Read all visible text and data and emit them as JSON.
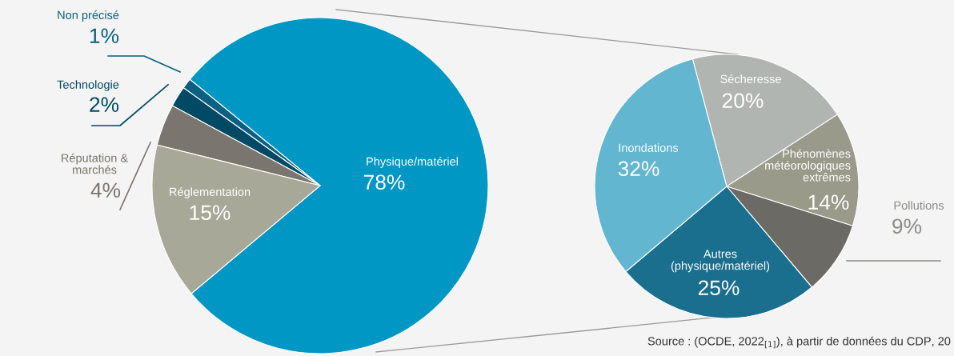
{
  "chart_data": [
    {
      "type": "pie",
      "categories": [
        "Physique/matériel",
        "Non précisé",
        "Technologie",
        "Réputation &\nmarchés",
        "Réglementation"
      ],
      "values": [
        78,
        1,
        2,
        4,
        15
      ],
      "value_labels": [
        "78%",
        "1%",
        "2%",
        "4%",
        "15%"
      ],
      "colors": [
        "#0097c4",
        "#0b5f80",
        "#004a66",
        "#7a756e",
        "#a8a898"
      ]
    },
    {
      "type": "pie",
      "categories": [
        "Sécheresse",
        "Phénomènes\nmétéorologiques\nextrêmes",
        "Pollutions",
        "Autres\n(physique/matériel)",
        "Inondations"
      ],
      "values": [
        20,
        14,
        9,
        25,
        32
      ],
      "value_labels": [
        "20%",
        "14%",
        "9%",
        "25%",
        "32%"
      ],
      "colors": [
        "#b0b5b2",
        "#9a9a8a",
        "#6b6a64",
        "#1a6e8e",
        "#62b6cf"
      ],
      "annotations": [
        "Source : (OCDE, 2022$_{[1]}$), à partir de données du CDP, 20"
      ]
    }
  ]
}
